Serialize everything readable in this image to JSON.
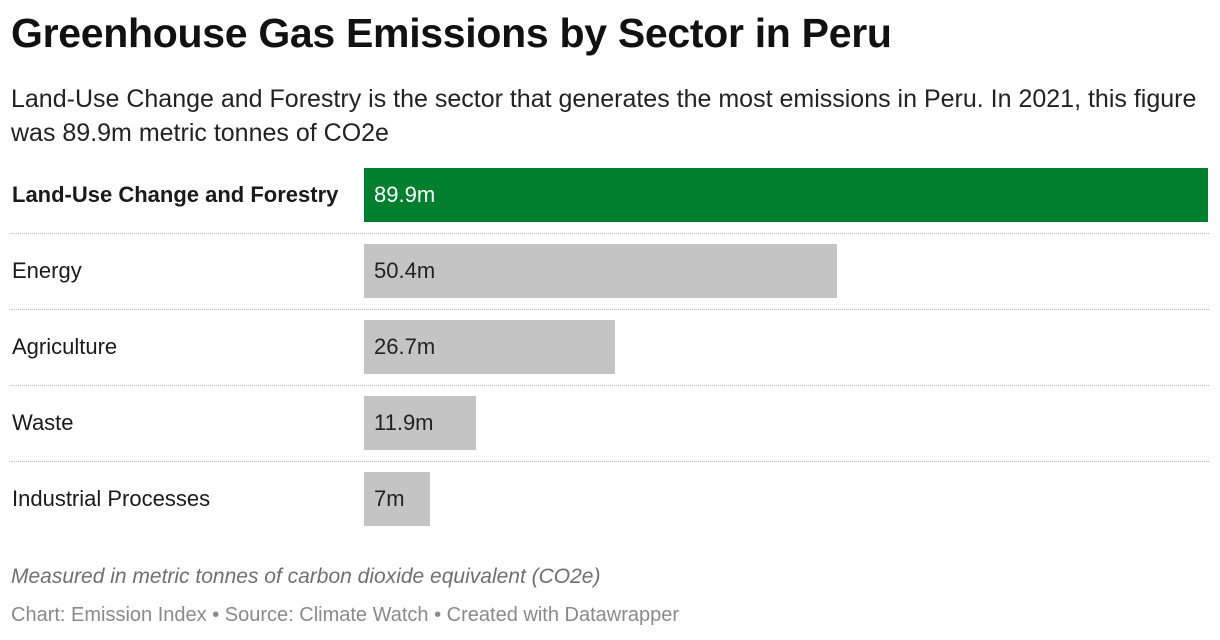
{
  "title": "Greenhouse Gas Emissions by Sector in Peru",
  "subtitle": "Land-Use Change and Forestry is the sector that generates the most emissions in Peru. In 2021, this figure was 89.9m metric tonnes of CO2e",
  "notes": "Measured in metric tonnes of carbon dioxide equivalent (CO2e)",
  "footer": {
    "chart_credit": "Chart: Emission Index",
    "separator_1": " • ",
    "source": "Source: Climate Watch",
    "separator_2": " • ",
    "created_with": "Created with Datawrapper"
  },
  "colors": {
    "highlight_bar": "#00802e",
    "default_bar": "#c4c4c4"
  },
  "chart_data": {
    "type": "bar",
    "orientation": "horizontal",
    "title": "Greenhouse Gas Emissions by Sector in Peru",
    "categories": [
      "Land-Use Change and Forestry",
      "Energy",
      "Agriculture",
      "Waste",
      "Industrial Processes"
    ],
    "values": [
      89.9,
      50.4,
      26.7,
      11.9,
      7
    ],
    "value_labels": [
      "89.9m",
      "50.4m",
      "26.7m",
      "11.9m",
      "7m"
    ],
    "highlighted": [
      true,
      false,
      false,
      false,
      false
    ],
    "xlim": [
      0,
      89.9
    ],
    "grid": false,
    "legend": "none"
  }
}
